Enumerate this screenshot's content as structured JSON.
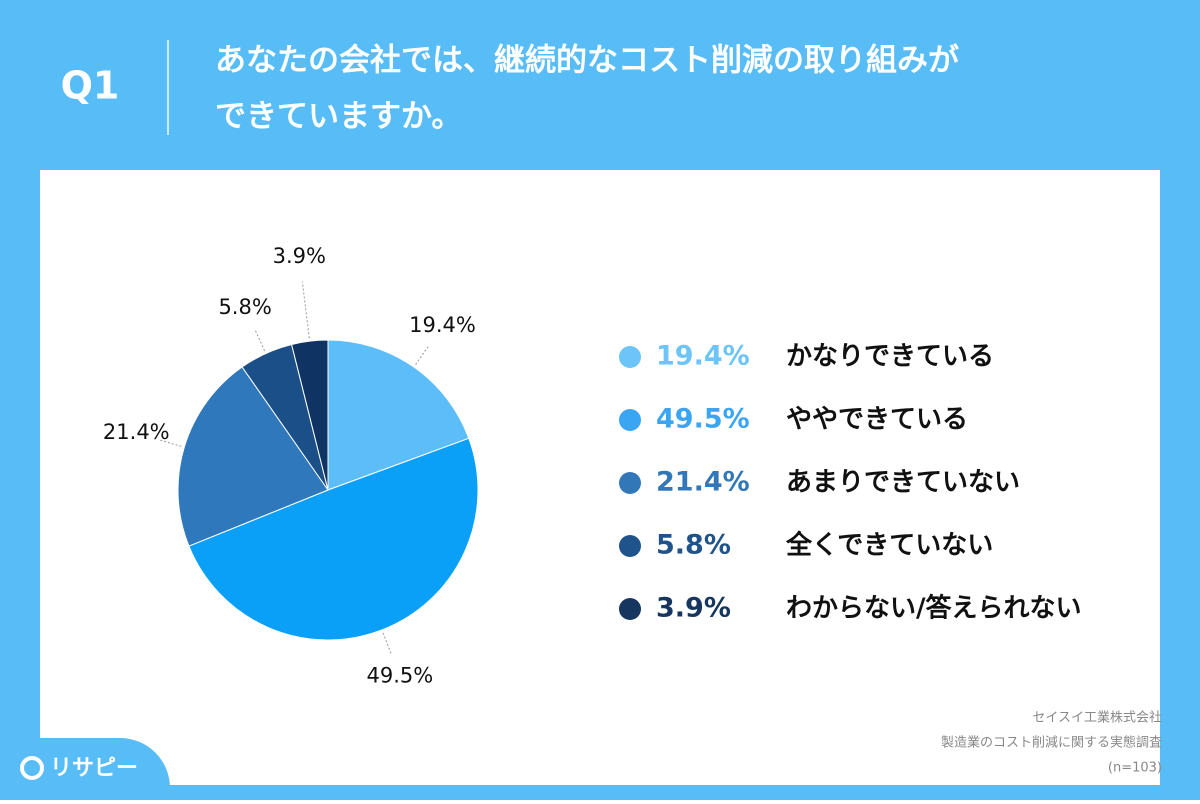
{
  "question": "Q1",
  "chart_data": {
    "type": "pie",
    "title": [
      "あなたの会社では、継続的なコスト削減の取り組みが",
      "できていますか。"
    ],
    "categories": [
      "かなりできている",
      "ややできている",
      "あまりできていない",
      "全くできていない",
      "わからない/答えられない"
    ],
    "values": [
      19.4,
      49.5,
      21.4,
      5.8,
      3.9
    ],
    "value_labels": [
      "19.4%",
      "49.5%",
      "21.4%",
      "5.8%",
      "3.9%"
    ],
    "colors": [
      "#5cbdf8",
      "#0aa0f7",
      "#2f78bb",
      "#1b4f87",
      "#0f3362"
    ],
    "legend_colors": [
      "#6cc4f8",
      "#3aa5f2",
      "#3278b9",
      "#1f538b",
      "#16365f"
    ]
  },
  "source": [
    "セイスイ工業株式会社",
    "製造業のコスト削減に関する実態調査",
    "(n=103)"
  ],
  "logo": "リサピー"
}
